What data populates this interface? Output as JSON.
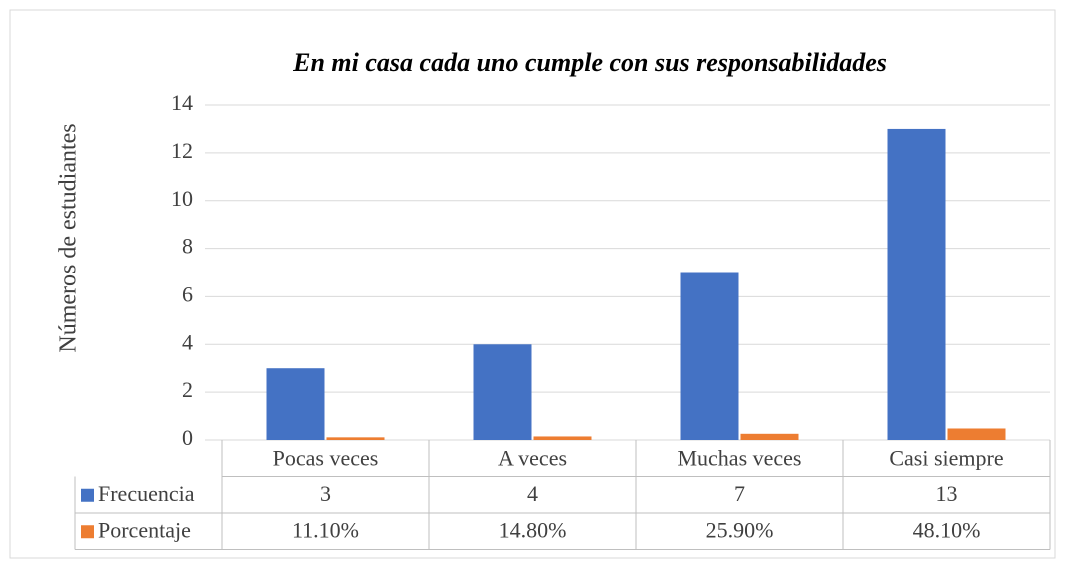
{
  "chart_data": {
    "type": "bar",
    "title": "En mi casa cada uno cumple con sus responsabilidades",
    "y_label": "Números de estudiantes",
    "categories": [
      "Pocas veces",
      "A veces",
      "Muchas veces",
      "Casi siempre"
    ],
    "series": [
      {
        "name": "Frecuencia",
        "color": "#4472c4",
        "values": [
          3,
          4,
          7,
          13
        ]
      },
      {
        "name": "Porcentaje",
        "color": "#ed7d31",
        "values": [
          0.111,
          0.148,
          0.259,
          0.481
        ],
        "value_labels": [
          "11.10%",
          "14.80%",
          "25.90%",
          "48.10%"
        ]
      }
    ],
    "ylim": [
      0,
      14
    ],
    "yticks": [
      0,
      2,
      4,
      6,
      8,
      10,
      12,
      14
    ],
    "grid": true,
    "data_table": true
  }
}
